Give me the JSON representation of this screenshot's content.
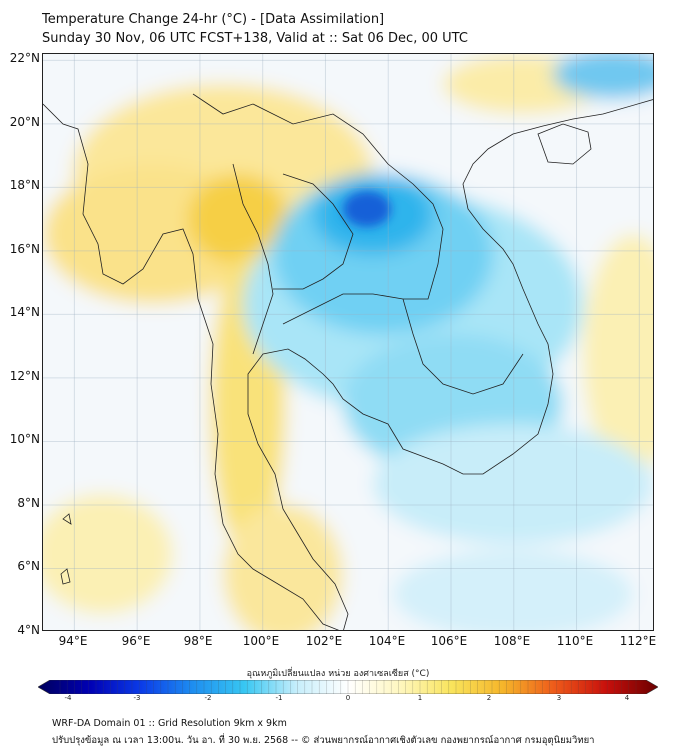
{
  "title": {
    "line1": "Temperature Change 24-hr (°C) - [Data Assimilation]",
    "line2": "Sunday 30 Nov, 06 UTC FCST+138, Valid at :: Sat 06 Dec, 00 UTC"
  },
  "map": {
    "lat_labels": [
      "22°N",
      "20°N",
      "18°N",
      "16°N",
      "14°N",
      "12°N",
      "10°N",
      "8°N",
      "6°N",
      "4°N"
    ],
    "lon_labels": [
      "94°E",
      "96°E",
      "98°E",
      "100°E",
      "102°E",
      "104°E",
      "106°E",
      "108°E",
      "110°E",
      "112°E"
    ],
    "lon_range": [
      93,
      112.5
    ],
    "lat_range": [
      4,
      22.2
    ],
    "palette": {
      "background": "#f4f8fb",
      "warm_light": "#fbf0b4",
      "warm": "#f9e27a",
      "warm_strong": "#f5cf3e",
      "cool_light": "#d4f0fa",
      "cool": "#8fdcf4",
      "cool_strong": "#2fb4ec",
      "cool_core": "#1560d8",
      "coast": "#222222"
    }
  },
  "colorbar": {
    "title": "อุณหภูมิเปลี่ยนแปลง หน่วย องศาเซลเซียส (°C)",
    "ticks": [
      "-4",
      "-3",
      "-2",
      "-1",
      "0",
      "1",
      "2",
      "3",
      "4"
    ],
    "range": [
      -4,
      4
    ],
    "colors": [
      "#00005c",
      "#0000b4",
      "#0b3ce8",
      "#1e8ef0",
      "#38c7f2",
      "#c6eefb",
      "#ffffff",
      "#fff7c0",
      "#f9e45c",
      "#f5b52a",
      "#ee5a1a",
      "#c8100c",
      "#6a0000"
    ]
  },
  "footer": {
    "line1": "WRF-DA Domain 01 :: Grid Resolution 9km x 9km",
    "line2": "ปรับปรุงข้อมูล ณ เวลา 13:00น. วัน อา. ที่ 30 พ.ย. 2568 -- © ส่วนพยากรณ์อากาศเชิงตัวเลข กองพยากรณ์อากาศ กรมอุตุนิยมวิทยา"
  }
}
